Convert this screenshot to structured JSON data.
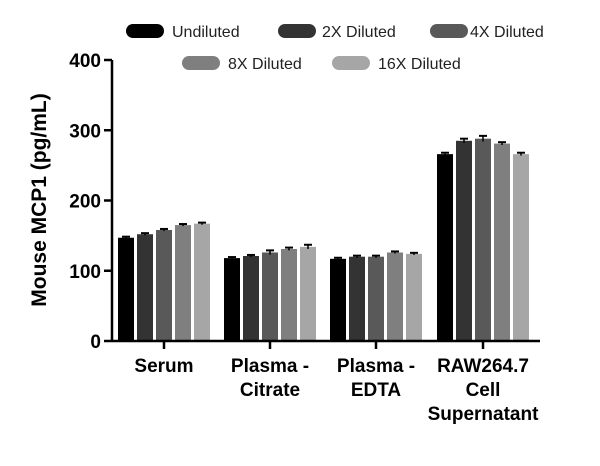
{
  "chart_data": {
    "type": "bar",
    "title": "",
    "xlabel": "",
    "ylabel": "Mouse MCP1 (pg/mL)",
    "ylim": [
      0,
      400
    ],
    "yticks": [
      0,
      100,
      200,
      300,
      400
    ],
    "grid": false,
    "legend_position": "top",
    "categories": [
      [
        "Serum"
      ],
      [
        "Plasma -",
        "Citrate"
      ],
      [
        "Plasma -",
        "EDTA"
      ],
      [
        "RAW264.7",
        "Cell",
        "Supernatant"
      ]
    ],
    "series": [
      {
        "name": "Undiluted",
        "color": "#000000",
        "values": [
          147,
          118,
          117,
          266
        ],
        "errors": [
          1.5,
          1.5,
          1.5,
          2
        ]
      },
      {
        "name": "2X Diluted",
        "color": "#333333",
        "values": [
          152,
          121,
          120,
          285
        ],
        "errors": [
          1.5,
          1.5,
          1.5,
          3
        ]
      },
      {
        "name": "4X Diluted",
        "color": "#595959",
        "values": [
          158,
          126,
          120,
          288
        ],
        "errors": [
          1.5,
          3,
          1.5,
          4
        ]
      },
      {
        "name": "8X Diluted",
        "color": "#7f7f7f",
        "values": [
          165,
          131,
          126,
          281
        ],
        "errors": [
          1.5,
          2,
          1.5,
          2
        ]
      },
      {
        "name": "16X Diluted",
        "color": "#a6a6a6",
        "values": [
          167,
          134,
          124,
          266
        ],
        "errors": [
          1.5,
          3,
          1.5,
          2
        ]
      }
    ]
  }
}
